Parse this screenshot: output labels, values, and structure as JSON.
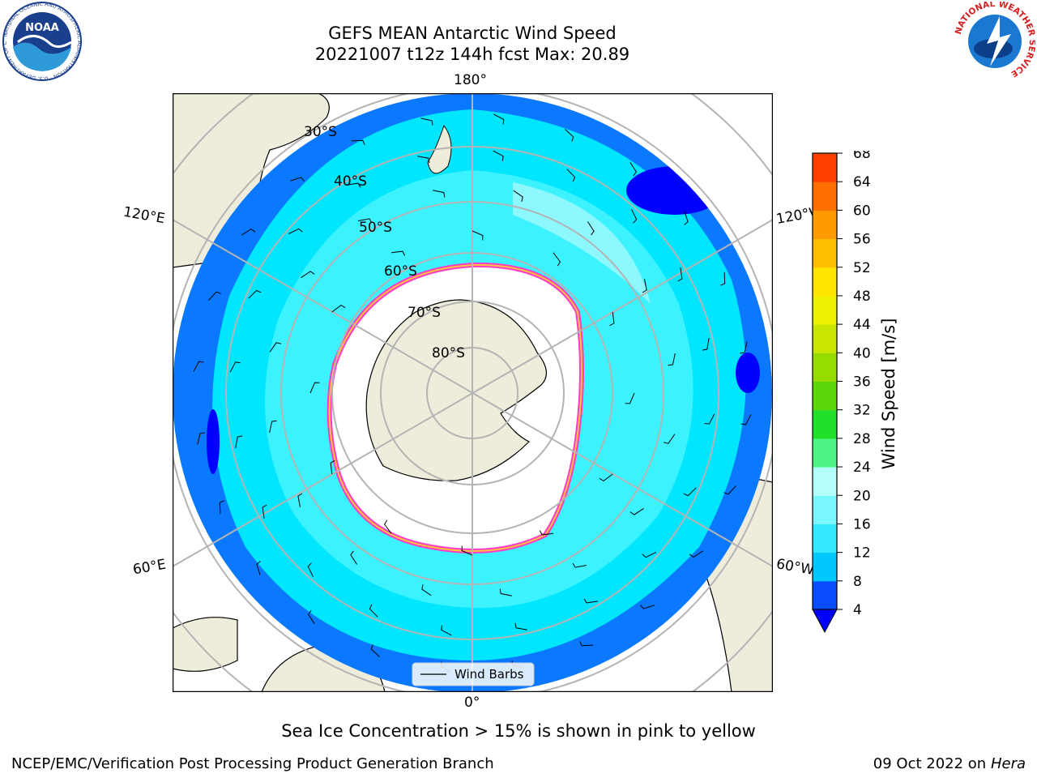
{
  "title": {
    "line1": "GEFS MEAN Antarctic Wind Speed",
    "line2": "20221007 t12z 144h fcst   Max: 20.89"
  },
  "map": {
    "projection": "south polar stereographic",
    "longitude_labels": [
      "180°",
      "120°E",
      "120°W",
      "60°E",
      "60°W",
      "0°"
    ],
    "latitude_labels": [
      "30°S",
      "40°S",
      "50°S",
      "60°S",
      "70°S",
      "80°S"
    ],
    "legend_label": "Wind Barbs"
  },
  "colorbar": {
    "label": "Wind Speed [m/s]",
    "ticks": [
      "4",
      "8",
      "12",
      "16",
      "20",
      "24",
      "28",
      "32",
      "36",
      "40",
      "44",
      "48",
      "52",
      "56",
      "60",
      "64",
      "68"
    ],
    "colors": [
      "#0a4cff",
      "#00c8ff",
      "#34e8ff",
      "#7af6ff",
      "#b4fffb",
      "#4cf584",
      "#22e02a",
      "#5ad60a",
      "#96dc00",
      "#c8e600",
      "#eef200",
      "#ffe600",
      "#ffbe00",
      "#ff9a00",
      "#ff6e00",
      "#ff4000",
      "#ff0000"
    ],
    "under_color": "#0000ff"
  },
  "note": "Sea Ice Concentration > 15% is shown in pink to yellow",
  "footer": {
    "left": "NCEP/EMC/Verification Post Processing Product Generation Branch",
    "date": "09 Oct 2022 on ",
    "machine": "Hera"
  },
  "logos": {
    "noaa": {
      "text": "NOAA",
      "ring": "NATIONAL OCEANIC AND ATMOSPHERIC ADMINISTRATION · U.S. DEPARTMENT OF COMMERCE"
    },
    "nws": {
      "ring": "NATIONAL WEATHER SERVICE"
    }
  }
}
